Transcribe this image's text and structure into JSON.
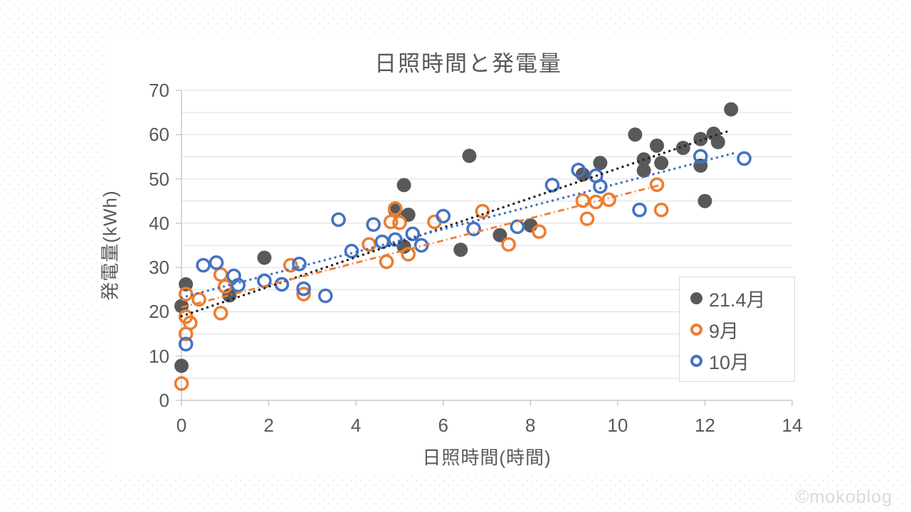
{
  "title": "日照時間と発電量",
  "watermark": "©mokoblog",
  "colors": {
    "april": "#595959",
    "september": "#ED7D31",
    "october": "#4472C4",
    "trendline_april": "#262626",
    "gridline": "#dcdcdc",
    "axis_line": "#bfbfbf",
    "text": "#595959",
    "legend_border": "#d9d9d9",
    "watermark_text": "#dadada"
  },
  "chart_data": {
    "type": "scatter",
    "title": "日照時間と発電量",
    "xlabel": "日照時間(時間)",
    "ylabel": "発電量(kWh)",
    "xlim": [
      0,
      14
    ],
    "ylim": [
      0,
      70
    ],
    "x_ticks": [
      0,
      2,
      4,
      6,
      8,
      10,
      12,
      14
    ],
    "y_ticks": [
      0,
      10,
      20,
      30,
      40,
      50,
      60,
      70
    ],
    "gridline_interval": 5,
    "grid": "horizontal-only",
    "legend_position": "inside-right",
    "series": [
      {
        "name": "21.4月",
        "marker": "filled-circle",
        "color": "#595959",
        "points": [
          [
            0,
            7.8
          ],
          [
            0,
            21.3
          ],
          [
            0.1,
            26.2
          ],
          [
            1.1,
            23.7
          ],
          [
            1.9,
            32.2
          ],
          [
            4.9,
            42.9
          ],
          [
            5.1,
            48.6
          ],
          [
            5.1,
            34.7
          ],
          [
            5.2,
            41.9
          ],
          [
            6.4,
            34
          ],
          [
            6.6,
            55.2
          ],
          [
            7.3,
            37.3
          ],
          [
            8,
            39.5
          ],
          [
            9.2,
            51
          ],
          [
            9.6,
            53.6
          ],
          [
            10.4,
            60
          ],
          [
            10.6,
            54.4
          ],
          [
            10.6,
            51.9
          ],
          [
            10.9,
            57.5
          ],
          [
            11,
            53.6
          ],
          [
            11.5,
            57
          ],
          [
            11.9,
            59
          ],
          [
            11.9,
            53
          ],
          [
            12,
            45
          ],
          [
            12.2,
            60.2
          ],
          [
            12.3,
            58.3
          ],
          [
            12.6,
            65.7
          ]
        ],
        "trendline": {
          "style": "dotted",
          "color": "#262626",
          "from": [
            0,
            19
          ],
          "to": [
            12.6,
            61
          ]
        }
      },
      {
        "name": "9月",
        "marker": "open-circle",
        "color": "#ED7D31",
        "points": [
          [
            0,
            3.8
          ],
          [
            0.1,
            24
          ],
          [
            0.1,
            18.9
          ],
          [
            0.1,
            15
          ],
          [
            0.2,
            17.5
          ],
          [
            0.4,
            22.8
          ],
          [
            0.9,
            28.4
          ],
          [
            0.9,
            19.7
          ],
          [
            1,
            25.7
          ],
          [
            2.5,
            30.5
          ],
          [
            2.8,
            24
          ],
          [
            4.3,
            35.2
          ],
          [
            4.7,
            31.3
          ],
          [
            4.8,
            40.3
          ],
          [
            4.9,
            43.3
          ],
          [
            5,
            40.1
          ],
          [
            5.2,
            33
          ],
          [
            5.8,
            40.3
          ],
          [
            6.9,
            42.7
          ],
          [
            7.5,
            35.2
          ],
          [
            8.2,
            38.1
          ],
          [
            9.2,
            45.1
          ],
          [
            9.3,
            41
          ],
          [
            9.5,
            44.8
          ],
          [
            9.8,
            45.3
          ],
          [
            10.9,
            48.7
          ],
          [
            11,
            43
          ]
        ],
        "trendline": {
          "style": "dash-dot",
          "color": "#ED7D31",
          "from": [
            0,
            21
          ],
          "to": [
            11.05,
            48.8
          ]
        }
      },
      {
        "name": "10月",
        "marker": "open-circle",
        "color": "#4472C4",
        "points": [
          [
            0.1,
            12.7
          ],
          [
            0.5,
            30.5
          ],
          [
            0.8,
            31.1
          ],
          [
            1.2,
            28.1
          ],
          [
            1.3,
            26
          ],
          [
            1.9,
            27
          ],
          [
            2.3,
            26.2
          ],
          [
            2.7,
            30.8
          ],
          [
            2.8,
            25.2
          ],
          [
            3.3,
            23.6
          ],
          [
            3.6,
            40.8
          ],
          [
            3.9,
            33.7
          ],
          [
            4.4,
            39.7
          ],
          [
            4.6,
            35.8
          ],
          [
            4.9,
            36.3
          ],
          [
            5.3,
            37.6
          ],
          [
            5.5,
            35
          ],
          [
            6,
            41.6
          ],
          [
            6.7,
            38.7
          ],
          [
            7.7,
            39.2
          ],
          [
            8.5,
            48.6
          ],
          [
            9.1,
            52
          ],
          [
            9.5,
            50.7
          ],
          [
            9.6,
            48.3
          ],
          [
            10.5,
            43
          ],
          [
            11.9,
            55.1
          ],
          [
            12.9,
            54.6
          ]
        ],
        "trendline": {
          "style": "dotted",
          "color": "#4472C4",
          "from": [
            0,
            23.2
          ],
          "to": [
            12.7,
            55.9
          ]
        }
      }
    ]
  }
}
